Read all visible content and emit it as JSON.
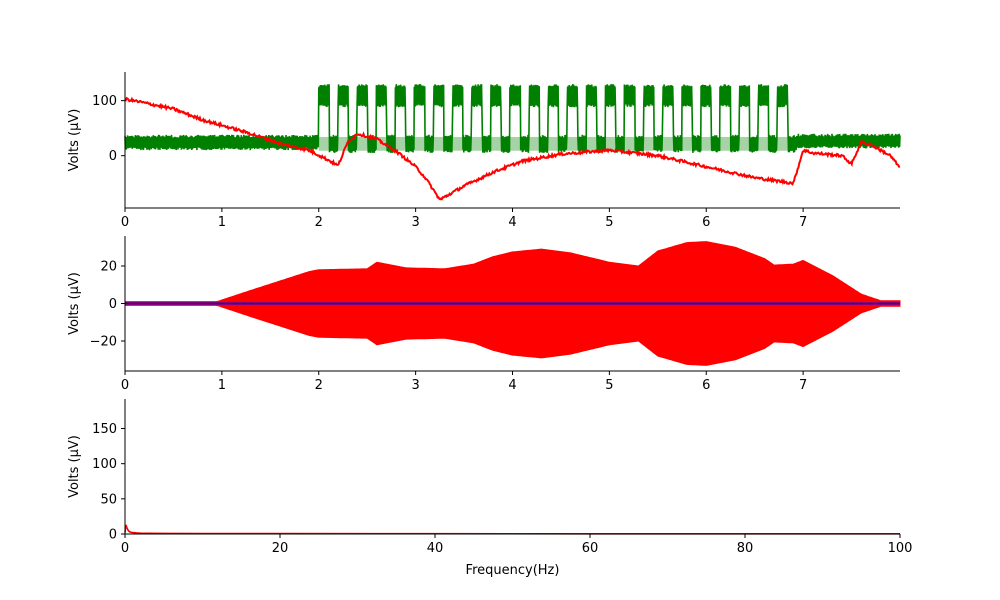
{
  "figure": {
    "background": "#ffffff"
  },
  "chart_data": [
    {
      "type": "line",
      "title": "",
      "xlabel": "",
      "ylabel": "Volts (μV)",
      "xlim": [
        0,
        8.0
      ],
      "ylim": [
        -95,
        152
      ],
      "x_ticks": [
        0,
        1,
        2,
        3,
        4,
        5,
        6,
        7
      ],
      "x_tick_labels": [
        "0",
        "1",
        "2",
        "3",
        "4",
        "5",
        "6",
        "7"
      ],
      "y_ticks": [
        0,
        100
      ],
      "y_tick_labels": [
        "0",
        "100"
      ],
      "grid": false,
      "series": [
        {
          "color": "#008000",
          "style": "noisy band at baseline, then rectangular pulse train",
          "baseline_band": [
            10,
            38
          ],
          "pulse_window": [
            2.0,
            6.93
          ],
          "pulse_high": [
            88,
            130
          ],
          "pulse_low": [
            5,
            38
          ],
          "pulse_count": 25,
          "duty": 0.55,
          "after_pulses_band": [
            13,
            40
          ]
        },
        {
          "color": "#ff0000",
          "style": "slow drifting trace",
          "x": [
            0,
            0.2,
            0.5,
            0.8,
            1.0,
            1.3,
            1.6,
            1.9,
            2.1,
            2.2,
            2.3,
            2.4,
            2.6,
            2.8,
            3.0,
            3.1,
            3.25,
            3.5,
            3.8,
            4.1,
            4.5,
            5.0,
            5.5,
            6.0,
            6.5,
            6.9,
            7.0,
            7.1,
            7.4,
            7.5,
            7.6,
            7.7,
            7.9,
            8.0
          ],
          "y": [
            103,
            96,
            85,
            65,
            55,
            40,
            22,
            10,
            -8,
            -18,
            25,
            40,
            30,
            8,
            -20,
            -40,
            -80,
            -55,
            -30,
            -10,
            3,
            10,
            0,
            -20,
            -40,
            -50,
            10,
            5,
            0,
            -15,
            25,
            20,
            0,
            -22
          ]
        }
      ]
    },
    {
      "type": "area",
      "title": "",
      "xlabel": "",
      "ylabel": "Volts (μV)",
      "xlim": [
        0,
        8.0
      ],
      "ylim": [
        -36,
        36
      ],
      "x_ticks": [
        0,
        1,
        2,
        3,
        4,
        5,
        6,
        7
      ],
      "x_tick_labels": [
        "0",
        "1",
        "2",
        "3",
        "4",
        "5",
        "6",
        "7"
      ],
      "y_ticks": [
        -20,
        0,
        20
      ],
      "y_tick_labels": [
        "−20",
        "0",
        "20"
      ],
      "grid": false,
      "series": [
        {
          "color": "#ff0000",
          "style": "symmetric oscillation envelope",
          "x": [
            0,
            0.95,
            1.3,
            1.6,
            1.9,
            2.0,
            2.5,
            2.6,
            2.9,
            3.3,
            3.6,
            3.8,
            4.0,
            4.3,
            4.6,
            5.0,
            5.3,
            5.5,
            5.8,
            6.0,
            6.3,
            6.6,
            6.7,
            6.9,
            7.0,
            7.3,
            7.6,
            7.8,
            8.0
          ],
          "y": [
            1,
            1,
            7,
            12,
            17,
            18,
            18.5,
            22,
            19,
            18.5,
            21,
            25,
            27.5,
            29,
            27,
            22,
            20,
            28,
            32.5,
            33,
            30,
            24,
            20.5,
            21,
            23,
            15,
            5,
            1.5,
            1.5
          ]
        },
        {
          "color": "#0000ff",
          "style": "flat line",
          "x": [
            0,
            8.0
          ],
          "y": [
            0,
            0
          ]
        }
      ]
    },
    {
      "type": "line",
      "title": "",
      "xlabel": "Frequency(Hz)",
      "ylabel": "Volts (μV)",
      "xlim": [
        0,
        100
      ],
      "ylim": [
        0,
        192
      ],
      "x_ticks": [
        0,
        20,
        40,
        60,
        80,
        100
      ],
      "x_tick_labels": [
        "0",
        "20",
        "40",
        "60",
        "80",
        "100"
      ],
      "y_ticks": [
        0,
        50,
        100,
        150
      ],
      "y_tick_labels": [
        "0",
        "50",
        "100",
        "150"
      ],
      "grid": false,
      "series": [
        {
          "color": "#ff0000",
          "style": "spectrum",
          "x": [
            0,
            0.12,
            0.25,
            0.37,
            0.5,
            0.62,
            0.75,
            1.0,
            1.25,
            1.5,
            2.0,
            3.0,
            5.0,
            10,
            20,
            40,
            60,
            80,
            100
          ],
          "y": [
            2,
            13,
            9,
            6,
            4,
            3,
            2.5,
            2,
            1.8,
            1.5,
            1.2,
            1.0,
            0.8,
            0.6,
            0.5,
            0.4,
            0.35,
            0.3,
            0.3
          ]
        }
      ]
    }
  ]
}
